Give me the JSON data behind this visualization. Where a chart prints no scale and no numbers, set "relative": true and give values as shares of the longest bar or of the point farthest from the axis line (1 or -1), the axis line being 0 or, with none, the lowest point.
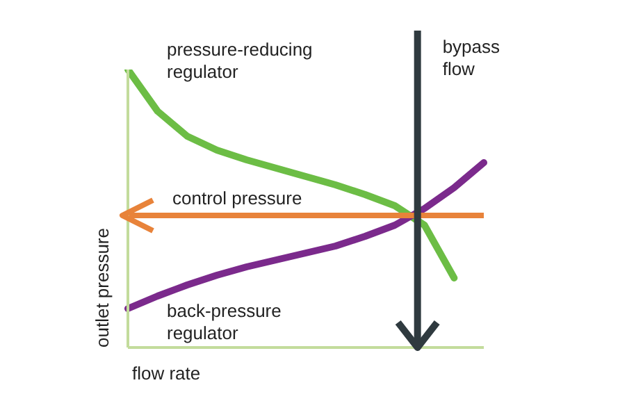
{
  "chart_data": {
    "type": "line",
    "relative": true,
    "xlabel": "flow rate",
    "ylabel": "outlet pressure",
    "categories": [
      null,
      null,
      null,
      null,
      null,
      null,
      null,
      null,
      null,
      null,
      null,
      null,
      null
    ],
    "series": [
      {
        "name": "pressure-reducing regulator",
        "color": "#6cbd45",
        "values": [
          1.0,
          0.85,
          0.76,
          0.71,
          0.675,
          0.645,
          0.615,
          0.585,
          0.55,
          0.51,
          0.44,
          0.25,
          null
        ]
      },
      {
        "name": "back-pressure regulator",
        "color": "#7b2a8c",
        "values": [
          0.14,
          0.185,
          0.225,
          0.26,
          0.29,
          0.315,
          0.34,
          0.365,
          0.4,
          0.44,
          0.5,
          0.575,
          0.665
        ]
      }
    ],
    "ref_lines": [
      {
        "axis": "y",
        "value": 0.475,
        "label": "control pressure",
        "color": "#e8833a"
      }
    ],
    "annotations": [
      "bypass flow"
    ],
    "grid": false,
    "legend": false,
    "marker": "none",
    "line_style": "solid"
  }
}
